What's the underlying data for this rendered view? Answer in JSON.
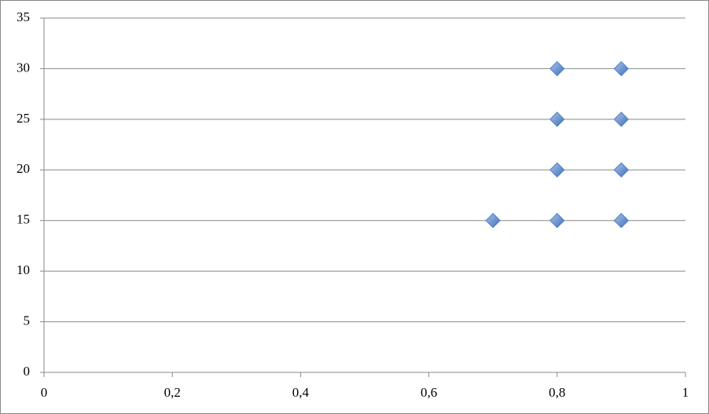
{
  "chart_data": {
    "type": "scatter",
    "x": [
      0.7,
      0.8,
      0.8,
      0.8,
      0.8,
      0.9,
      0.9,
      0.9,
      0.9
    ],
    "values": [
      15,
      15,
      20,
      25,
      30,
      15,
      20,
      25,
      30
    ],
    "color": "#4f81bd",
    "xlim": [
      0,
      1
    ],
    "xticks": [
      0,
      {
        "value": 0.2,
        "label": "0,2"
      },
      {
        "value": 0.4,
        "label": "0,4"
      },
      {
        "value": 0.6,
        "label": "0,6"
      },
      {
        "value": 0.8,
        "label": "0,8"
      },
      1
    ],
    "ylim": [
      0,
      35
    ],
    "yticks": [
      0,
      5,
      10,
      15,
      20,
      25,
      30,
      35
    ],
    "grid": true
  }
}
